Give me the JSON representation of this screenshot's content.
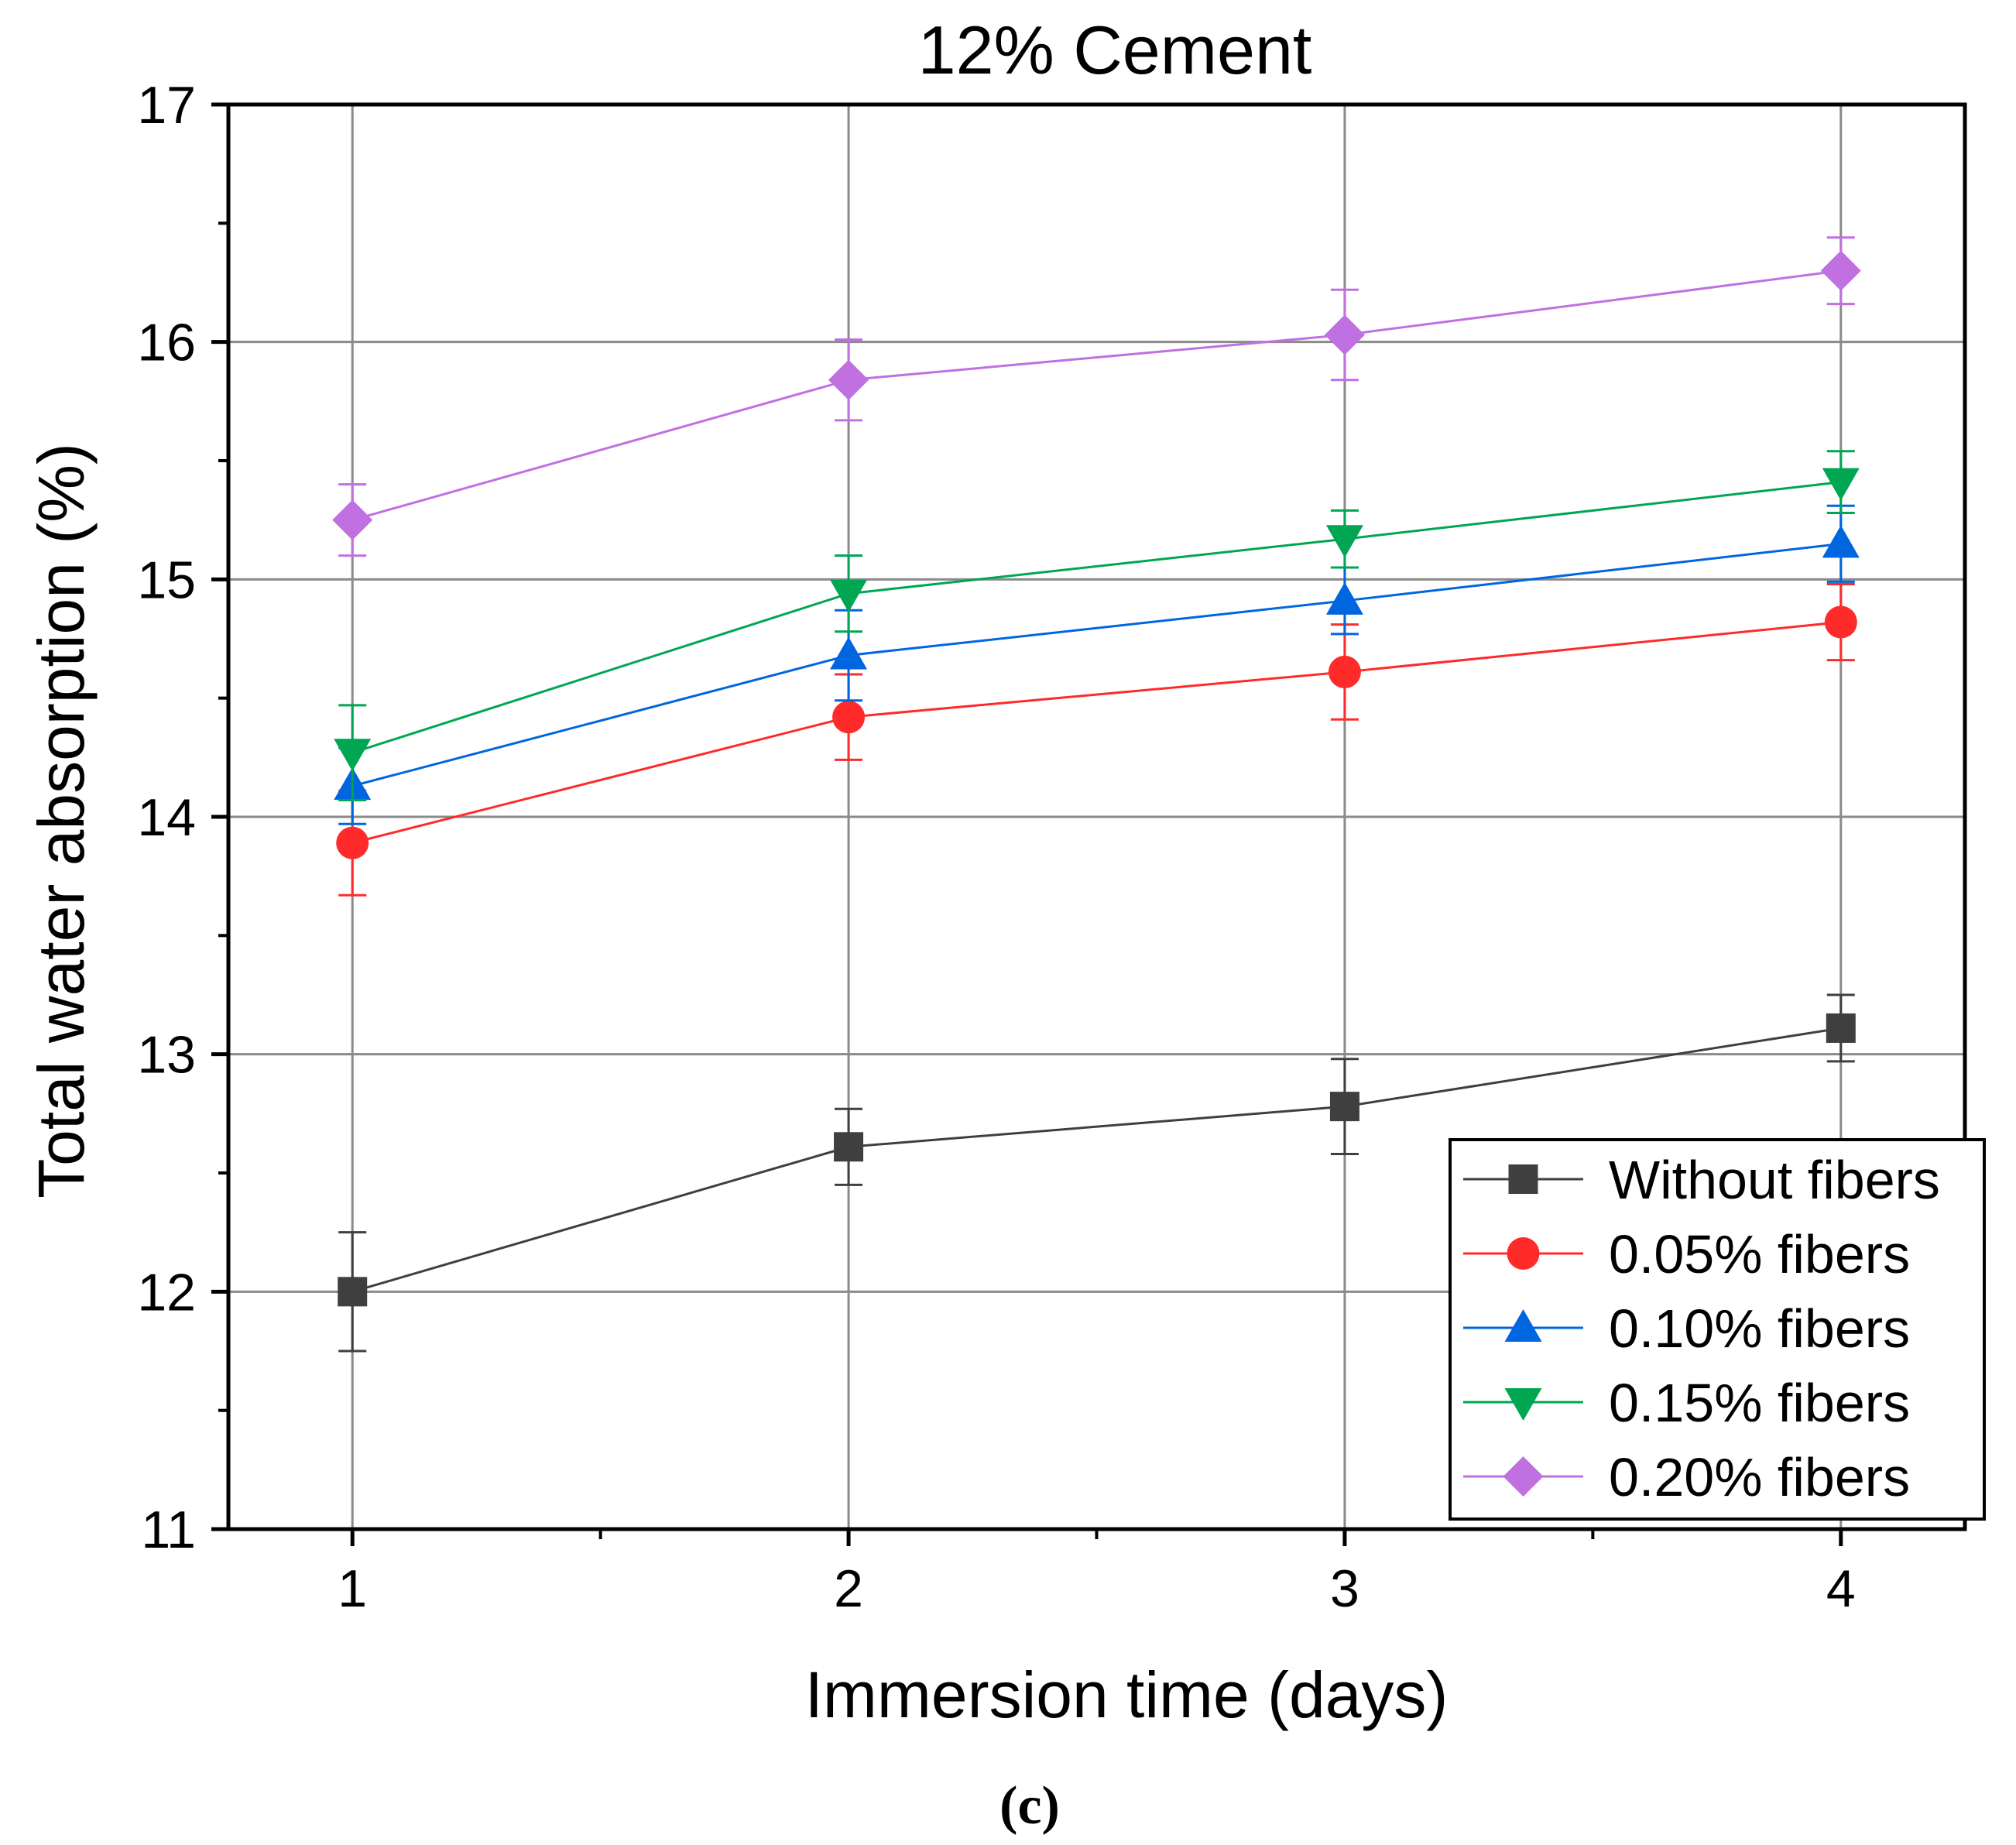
{
  "panel_label": "(c)",
  "chart_data": {
    "type": "line",
    "title": "12% Cement",
    "xlabel": "Immersion time (days)",
    "ylabel": "Total water absorption (%)",
    "xlim": [
      0.75,
      4.25
    ],
    "ylim": [
      11,
      17
    ],
    "x": [
      1,
      2,
      3,
      4
    ],
    "xticks": [
      1,
      2,
      3,
      4
    ],
    "xtick_labels": [
      "1",
      "2",
      "3",
      "4"
    ],
    "yticks": [
      11,
      12,
      13,
      14,
      15,
      16,
      17
    ],
    "ytick_labels": [
      "11",
      "12",
      "13",
      "14",
      "15",
      "16",
      "17"
    ],
    "grid": true,
    "legend_position": "bottom-right",
    "series": [
      {
        "name": "Without fibers",
        "color": "#3f3f3f",
        "marker": "square",
        "values": [
          12.0,
          12.61,
          12.78,
          13.11
        ],
        "errors": [
          0.25,
          0.16,
          0.2,
          0.14
        ]
      },
      {
        "name": "0.05% fibers",
        "color": "#ff2a2a",
        "marker": "circle",
        "values": [
          13.89,
          14.42,
          14.61,
          14.82
        ],
        "errors": [
          0.22,
          0.18,
          0.2,
          0.16
        ]
      },
      {
        "name": "0.10% fibers",
        "color": "#0066e0",
        "marker": "triangle-up",
        "values": [
          14.13,
          14.68,
          14.91,
          15.15
        ],
        "errors": [
          0.16,
          0.19,
          0.14,
          0.16
        ]
      },
      {
        "name": "0.15% fibers",
        "color": "#00a651",
        "marker": "triangle-down",
        "values": [
          14.27,
          14.94,
          15.17,
          15.41
        ],
        "errors": [
          0.2,
          0.16,
          0.12,
          0.13
        ]
      },
      {
        "name": "0.20% fibers",
        "color": "#c070e0",
        "marker": "diamond",
        "values": [
          15.25,
          15.84,
          16.03,
          16.3
        ],
        "errors": [
          0.15,
          0.17,
          0.19,
          0.14
        ]
      }
    ]
  }
}
